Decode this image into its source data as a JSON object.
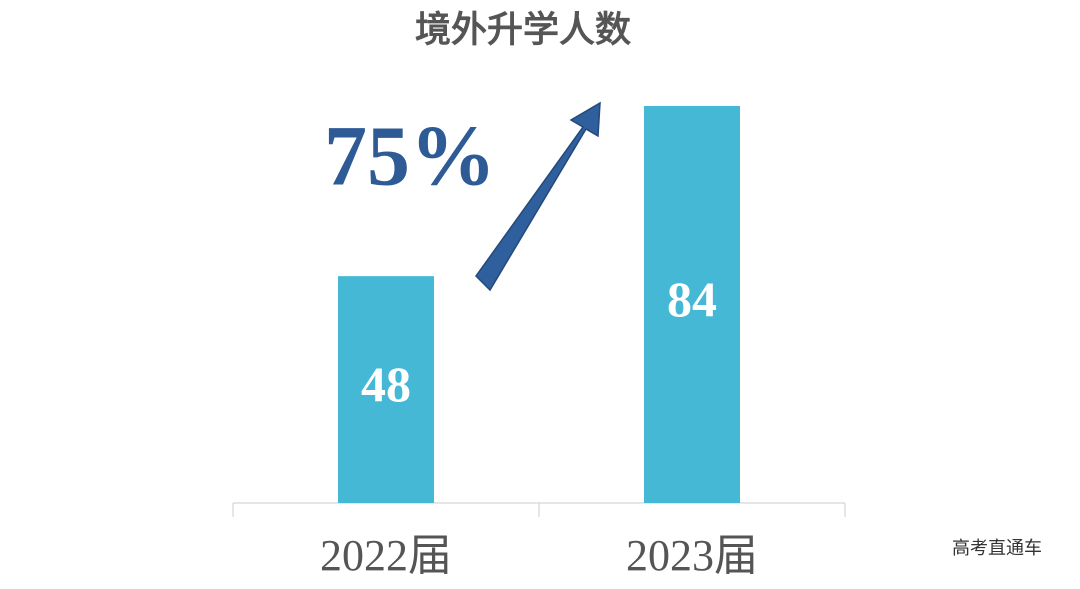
{
  "chart_data": {
    "type": "bar",
    "title": "境外升学人数",
    "categories": [
      "2022届",
      "2023届"
    ],
    "values": [
      48,
      84
    ],
    "color": "#45b8d6",
    "ylim": [
      0,
      84
    ],
    "annotation": "75%",
    "watermark": "高考直通车"
  }
}
